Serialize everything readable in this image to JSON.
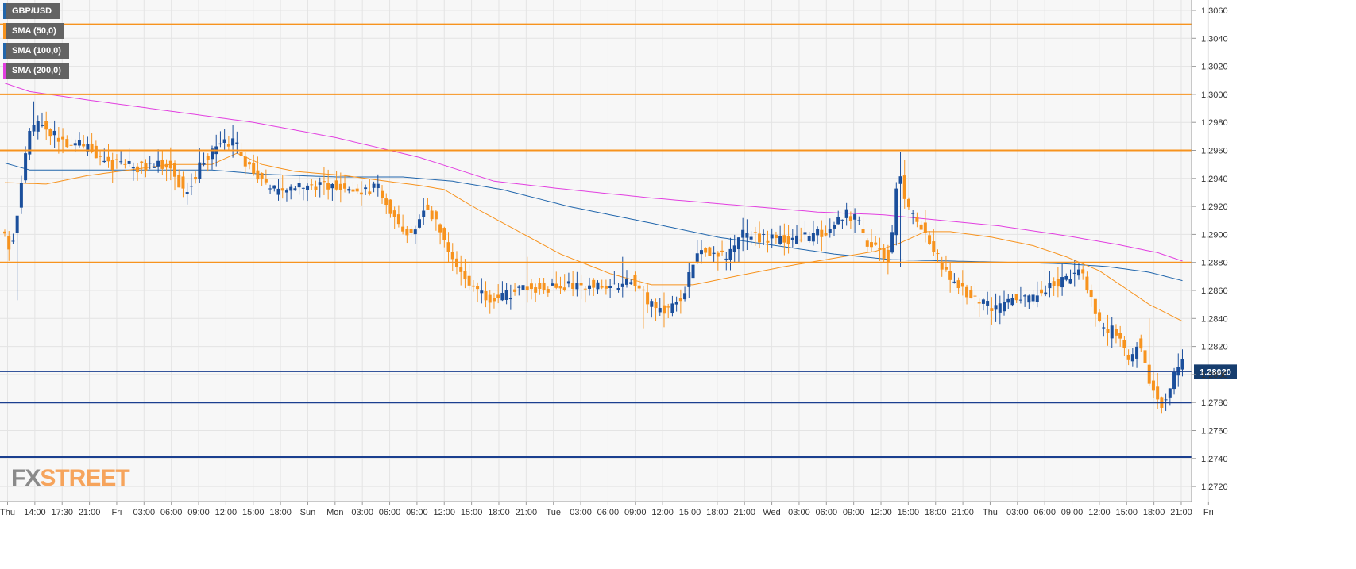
{
  "legend": [
    {
      "label": "GBP/USD",
      "color": "#2166ac"
    },
    {
      "label": "SMA (50,0)",
      "color": "#f7931e"
    },
    {
      "label": "SMA (100,0)",
      "color": "#2166ac"
    },
    {
      "label": "SMA (200,0)",
      "color": "#e23fe0"
    }
  ],
  "logo": {
    "fx": "FX",
    "street": "STREET"
  },
  "last_price_label": "1.28020",
  "colors": {
    "up": "#1b4f9c",
    "down": "#f7931e",
    "sma50": "#f7931e",
    "sma100": "#2166ac",
    "sma200": "#e23fe0",
    "resistance": "#f7931e",
    "support": "#1b3f8f"
  },
  "chart_data": {
    "type": "candlestick",
    "symbol": "GBP/USD",
    "ylim": [
      1.271,
      1.307
    ],
    "y_ticks": [
      "1.3060",
      "1.3040",
      "1.3020",
      "1.3000",
      "1.2980",
      "1.2960",
      "1.2940",
      "1.2920",
      "1.2900",
      "1.2880",
      "1.2860",
      "1.2840",
      "1.2820",
      "1.2800",
      "1.2780",
      "1.2760",
      "1.2740",
      "1.2720"
    ],
    "x_ticks": [
      "Thu",
      "14:00",
      "17:30",
      "21:00",
      "Fri",
      "03:00",
      "06:00",
      "09:00",
      "12:00",
      "15:00",
      "18:00",
      "Sun",
      "Mon",
      "03:00",
      "06:00",
      "09:00",
      "12:00",
      "15:00",
      "18:00",
      "21:00",
      "Tue",
      "03:00",
      "06:00",
      "09:00",
      "12:00",
      "15:00",
      "18:00",
      "21:00",
      "Wed",
      "03:00",
      "06:00",
      "09:00",
      "12:00",
      "15:00",
      "18:00",
      "21:00",
      "Thu",
      "03:00",
      "06:00",
      "09:00",
      "12:00",
      "15:00",
      "18:00",
      "21:00",
      "Fri"
    ],
    "horizontal_lines": [
      {
        "value": 1.305,
        "kind": "resistance"
      },
      {
        "value": 1.3,
        "kind": "resistance"
      },
      {
        "value": 1.296,
        "kind": "resistance"
      },
      {
        "value": 1.288,
        "kind": "resistance"
      },
      {
        "value": 1.2802,
        "kind": "last"
      },
      {
        "value": 1.278,
        "kind": "support"
      },
      {
        "value": 1.2741,
        "kind": "support"
      }
    ],
    "anchors": [
      [
        0,
        1.29
      ],
      [
        2,
        1.289
      ],
      [
        3,
        1.2905
      ],
      [
        5,
        1.295
      ],
      [
        6,
        1.297
      ],
      [
        9,
        1.2982
      ],
      [
        14,
        1.2965
      ],
      [
        20,
        1.2963
      ],
      [
        26,
        1.295
      ],
      [
        32,
        1.2948
      ],
      [
        40,
        1.295
      ],
      [
        44,
        1.293
      ],
      [
        48,
        1.295
      ],
      [
        52,
        1.2968
      ],
      [
        56,
        1.2965
      ],
      [
        60,
        1.2945
      ],
      [
        66,
        1.293
      ],
      [
        72,
        1.2935
      ],
      [
        80,
        1.2935
      ],
      [
        86,
        1.2928
      ],
      [
        90,
        1.2935
      ],
      [
        94,
        1.2915
      ],
      [
        98,
        1.29
      ],
      [
        102,
        1.292
      ],
      [
        106,
        1.29
      ],
      [
        110,
        1.2875
      ],
      [
        114,
        1.286
      ],
      [
        117,
        1.2852
      ],
      [
        122,
        1.2858
      ],
      [
        128,
        1.2862
      ],
      [
        134,
        1.2862
      ],
      [
        140,
        1.2865
      ],
      [
        146,
        1.2862
      ],
      [
        152,
        1.2868
      ],
      [
        156,
        1.285
      ],
      [
        160,
        1.2845
      ],
      [
        164,
        1.2855
      ],
      [
        166,
        1.2875
      ],
      [
        168,
        1.289
      ],
      [
        172,
        1.2885
      ],
      [
        175,
        1.2885
      ],
      [
        178,
        1.29
      ],
      [
        184,
        1.2897
      ],
      [
        190,
        1.2895
      ],
      [
        196,
        1.29
      ],
      [
        200,
        1.2905
      ],
      [
        203,
        1.2915
      ],
      [
        206,
        1.291
      ],
      [
        208,
        1.2895
      ],
      [
        212,
        1.2888
      ],
      [
        214,
        1.2882
      ],
      [
        216,
        1.295
      ],
      [
        218,
        1.292
      ],
      [
        222,
        1.2905
      ],
      [
        224,
        1.289
      ],
      [
        226,
        1.288
      ],
      [
        228,
        1.2868
      ],
      [
        232,
        1.2858
      ],
      [
        236,
        1.2852
      ],
      [
        240,
        1.2847
      ],
      [
        244,
        1.2855
      ],
      [
        248,
        1.2855
      ],
      [
        252,
        1.2862
      ],
      [
        256,
        1.2868
      ],
      [
        260,
        1.2872
      ],
      [
        262,
        1.286
      ],
      [
        264,
        1.284
      ],
      [
        266,
        1.2827
      ],
      [
        268,
        1.2835
      ],
      [
        270,
        1.2818
      ],
      [
        272,
        1.2808
      ],
      [
        274,
        1.2828
      ],
      [
        276,
        1.2798
      ],
      [
        278,
        1.2785
      ],
      [
        280,
        1.2778
      ],
      [
        282,
        1.2795
      ],
      [
        284,
        1.2808
      ]
    ],
    "sma50": [
      [
        0,
        1.2937
      ],
      [
        10,
        1.2936
      ],
      [
        20,
        1.2942
      ],
      [
        30,
        1.2946
      ],
      [
        40,
        1.295
      ],
      [
        50,
        1.295
      ],
      [
        56,
        1.2958
      ],
      [
        62,
        1.295
      ],
      [
        70,
        1.2945
      ],
      [
        82,
        1.2942
      ],
      [
        92,
        1.2938
      ],
      [
        100,
        1.2935
      ],
      [
        106,
        1.2932
      ],
      [
        114,
        1.2918
      ],
      [
        124,
        1.2902
      ],
      [
        134,
        1.2886
      ],
      [
        146,
        1.2872
      ],
      [
        156,
        1.2864
      ],
      [
        166,
        1.2864
      ],
      [
        176,
        1.287
      ],
      [
        188,
        1.2877
      ],
      [
        200,
        1.2883
      ],
      [
        210,
        1.2888
      ],
      [
        216,
        1.2894
      ],
      [
        222,
        1.2902
      ],
      [
        228,
        1.2902
      ],
      [
        238,
        1.2898
      ],
      [
        248,
        1.2892
      ],
      [
        256,
        1.2884
      ],
      [
        264,
        1.2874
      ],
      [
        270,
        1.2862
      ],
      [
        276,
        1.285
      ],
      [
        284,
        1.2838
      ]
    ],
    "sma100": [
      [
        0,
        1.2951
      ],
      [
        6,
        1.2946
      ],
      [
        14,
        1.2946
      ],
      [
        30,
        1.2946
      ],
      [
        50,
        1.2946
      ],
      [
        62,
        1.2943
      ],
      [
        80,
        1.2941
      ],
      [
        96,
        1.2941
      ],
      [
        108,
        1.2938
      ],
      [
        120,
        1.2932
      ],
      [
        136,
        1.292
      ],
      [
        156,
        1.2908
      ],
      [
        172,
        1.2898
      ],
      [
        186,
        1.2892
      ],
      [
        200,
        1.2886
      ],
      [
        214,
        1.2882
      ],
      [
        228,
        1.2881
      ],
      [
        244,
        1.288
      ],
      [
        256,
        1.2879
      ],
      [
        266,
        1.2877
      ],
      [
        276,
        1.2873
      ],
      [
        284,
        1.2867
      ]
    ],
    "sma200": [
      [
        0,
        1.3008
      ],
      [
        6,
        1.3002
      ],
      [
        20,
        1.2996
      ],
      [
        40,
        1.2988
      ],
      [
        60,
        1.298
      ],
      [
        80,
        1.2969
      ],
      [
        100,
        1.2955
      ],
      [
        118,
        1.2938
      ],
      [
        136,
        1.2932
      ],
      [
        156,
        1.2926
      ],
      [
        176,
        1.2921
      ],
      [
        196,
        1.2916
      ],
      [
        212,
        1.2914
      ],
      [
        226,
        1.291
      ],
      [
        240,
        1.2906
      ],
      [
        256,
        1.2899
      ],
      [
        268,
        1.2893
      ],
      [
        278,
        1.2887
      ],
      [
        284,
        1.2881
      ]
    ]
  }
}
